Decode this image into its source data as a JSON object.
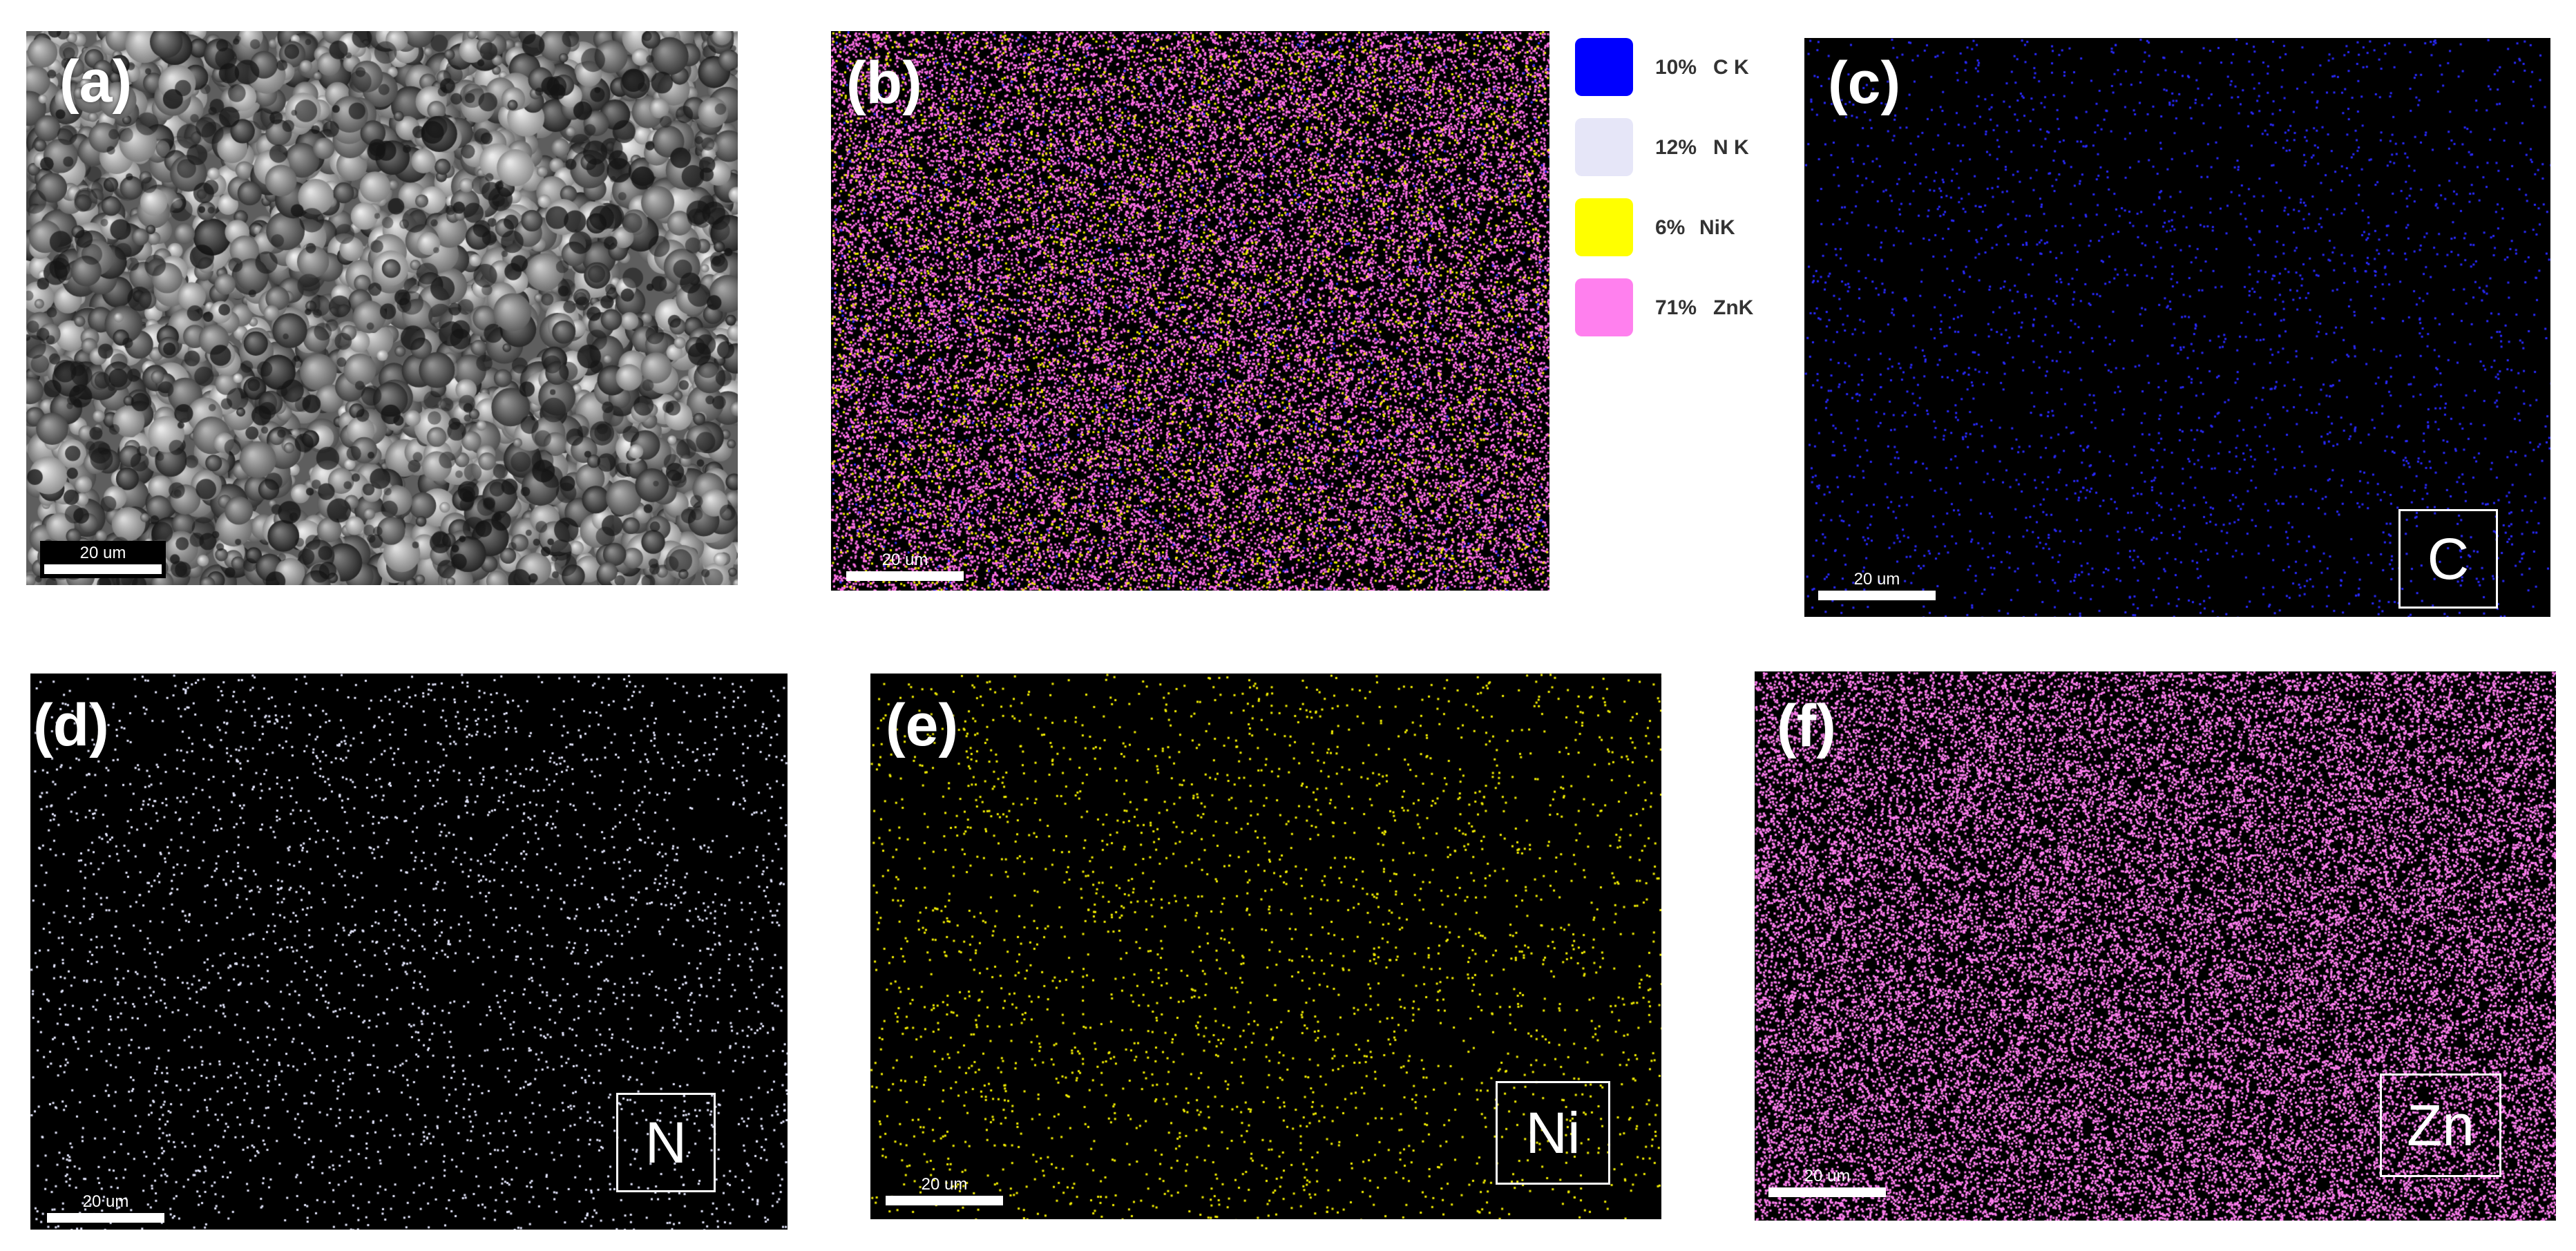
{
  "panels": {
    "a": {
      "label": "(a)",
      "scale": "20 um",
      "type": "sem"
    },
    "b": {
      "label": "(b)",
      "scale": "20 um",
      "type": "overlay"
    },
    "c": {
      "label": "(c)",
      "scale": "20 um",
      "element": "C",
      "color": "#2a2aff",
      "type": "map"
    },
    "d": {
      "label": "(d)",
      "scale": "20 um",
      "element": "N",
      "color": "#e6e8ff",
      "type": "map"
    },
    "e": {
      "label": "(e)",
      "scale": "20 um",
      "element": "Ni",
      "color": "#f5f000",
      "type": "map"
    },
    "f": {
      "label": "(f)",
      "scale": "20 um",
      "element": "Zn",
      "color": "#ff7ff0",
      "type": "map"
    }
  },
  "legend": [
    {
      "percent": "10%",
      "label": "C K",
      "color": "#0000ff"
    },
    {
      "percent": "12%",
      "label": "N K",
      "color": "#e6e6f8"
    },
    {
      "percent": "6%",
      "label": "NiK",
      "color": "#ffff00"
    },
    {
      "percent": "71%",
      "label": "ZnK",
      "color": "#ff80ee"
    }
  ]
}
